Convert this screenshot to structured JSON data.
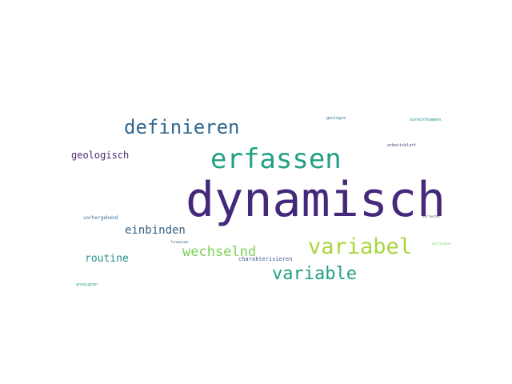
{
  "words": [
    {
      "text": "dynamisch",
      "color": "#44287a"
    },
    {
      "text": "erfassen",
      "color": "#22a085"
    },
    {
      "text": "definieren",
      "color": "#31688e"
    },
    {
      "text": "variabel",
      "color": "#a8d63d"
    },
    {
      "text": "variable",
      "color": "#22a085"
    },
    {
      "text": "wechselnd",
      "color": "#7ccf55"
    },
    {
      "text": "einbinden",
      "color": "#33607f"
    },
    {
      "text": "routine",
      "color": "#21918c"
    },
    {
      "text": "geologisch",
      "color": "#4b2a6f"
    },
    {
      "text": "vorhergehend",
      "color": "#3e6f95"
    },
    {
      "text": "charakterisieren",
      "color": "#3b5a88"
    },
    {
      "text": "formensam",
      "color": "#2d5f86"
    },
    {
      "text": "anzeignen",
      "color": "#1fa287"
    },
    {
      "text": "geologie",
      "color": "#2a7b8e"
    },
    {
      "text": "zurechtkommen",
      "color": "#21918c"
    },
    {
      "text": "arbeitsblatt",
      "color": "#3f3d7a"
    },
    {
      "text": "verlaufen",
      "color": "#34576f"
    },
    {
      "text": "vollziehen",
      "color": "#6ccf58"
    }
  ]
}
